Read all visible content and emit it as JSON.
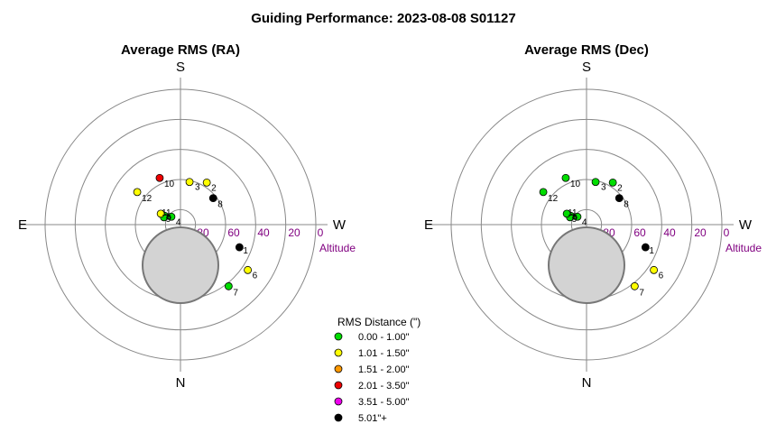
{
  "title": "Guiding Performance: 2023-08-08 S01127",
  "chart_data": [
    {
      "type": "scatter",
      "projection": "polar-altaz",
      "title": "Average RMS (RA)",
      "cardinals": {
        "top": "S",
        "left": "E",
        "right": "W",
        "bottom": "N"
      },
      "altitude_axis_label": "Altitude",
      "altitude_ticks": [
        "80",
        "60",
        "40",
        "20",
        "0"
      ],
      "altitude_rings": [
        80,
        60,
        40,
        20,
        0
      ],
      "moon": {
        "altitude": 63,
        "azimuth": 0,
        "color": "#d3d3d3"
      },
      "points": [
        {
          "label": "1",
          "altitude": 48,
          "azimuth": 291,
          "class": "5.01\"+"
        },
        {
          "label": "2",
          "altitude": 57,
          "azimuth": 212,
          "class": "1.01 - 1.50\""
        },
        {
          "label": "3",
          "altitude": 61,
          "azimuth": 192,
          "class": "1.01 - 1.50\""
        },
        {
          "label": "4",
          "altitude": 82,
          "azimuth": 131,
          "class": "0.00 - 1.00\""
        },
        {
          "label": "5",
          "altitude": 78,
          "azimuth": 119,
          "class": "0.00 - 1.00\""
        },
        {
          "label": "6",
          "altitude": 36,
          "azimuth": 304,
          "class": "1.01 - 1.50\""
        },
        {
          "label": "7",
          "altitude": 38,
          "azimuth": 322,
          "class": "0.00 - 1.00\""
        },
        {
          "label": "8",
          "altitude": 62,
          "azimuth": 231,
          "class": "5.01\"+"
        },
        {
          "label": "9",
          "altitude": 78,
          "azimuth": 114,
          "class": "0.00 - 1.00\""
        },
        {
          "label": "10",
          "altitude": 56,
          "azimuth": 156,
          "class": "2.01 - 3.50\""
        },
        {
          "label": "11",
          "altitude": 75,
          "azimuth": 119,
          "class": "1.01 - 1.50\""
        },
        {
          "label": "12",
          "altitude": 54,
          "azimuth": 127,
          "class": "1.01 - 1.50\""
        }
      ]
    },
    {
      "type": "scatter",
      "projection": "polar-altaz",
      "title": "Average RMS (Dec)",
      "cardinals": {
        "top": "S",
        "left": "E",
        "right": "W",
        "bottom": "N"
      },
      "altitude_axis_label": "Altitude",
      "altitude_ticks": [
        "80",
        "60",
        "40",
        "20",
        "0"
      ],
      "altitude_rings": [
        80,
        60,
        40,
        20,
        0
      ],
      "moon": {
        "altitude": 63,
        "azimuth": 0,
        "color": "#d3d3d3"
      },
      "points": [
        {
          "label": "1",
          "altitude": 48,
          "azimuth": 291,
          "class": "5.01\"+"
        },
        {
          "label": "2",
          "altitude": 57,
          "azimuth": 212,
          "class": "0.00 - 1.00\""
        },
        {
          "label": "3",
          "altitude": 61,
          "azimuth": 192,
          "class": "0.00 - 1.00\""
        },
        {
          "label": "4",
          "altitude": 82,
          "azimuth": 131,
          "class": "0.00 - 1.00\""
        },
        {
          "label": "5",
          "altitude": 78,
          "azimuth": 119,
          "class": "0.00 - 1.00\""
        },
        {
          "label": "6",
          "altitude": 36,
          "azimuth": 304,
          "class": "1.01 - 1.50\""
        },
        {
          "label": "7",
          "altitude": 38,
          "azimuth": 322,
          "class": "1.01 - 1.50\""
        },
        {
          "label": "8",
          "altitude": 62,
          "azimuth": 231,
          "class": "5.01\"+"
        },
        {
          "label": "9",
          "altitude": 78,
          "azimuth": 114,
          "class": "0.00 - 1.00\""
        },
        {
          "label": "10",
          "altitude": 56,
          "azimuth": 156,
          "class": "0.00 - 1.00\""
        },
        {
          "label": "11",
          "altitude": 75,
          "azimuth": 119,
          "class": "0.00 - 1.00\""
        },
        {
          "label": "12",
          "altitude": 54,
          "azimuth": 127,
          "class": "0.00 - 1.00\""
        }
      ]
    }
  ],
  "legend": {
    "title": "RMS Distance (\")",
    "placement": "bottom-center",
    "items": [
      {
        "label": "0.00 - 1.00\"",
        "color": "#00dd00"
      },
      {
        "label": "1.01 - 1.50\"",
        "color": "#ffff00"
      },
      {
        "label": "1.51 - 2.00\"",
        "color": "#ff9900"
      },
      {
        "label": "2.01 - 3.50\"",
        "color": "#ee0000"
      },
      {
        "label": "3.51 - 5.00\"",
        "color": "#ee00ee"
      },
      {
        "label": "5.01\"+",
        "color": "#000000"
      }
    ]
  }
}
